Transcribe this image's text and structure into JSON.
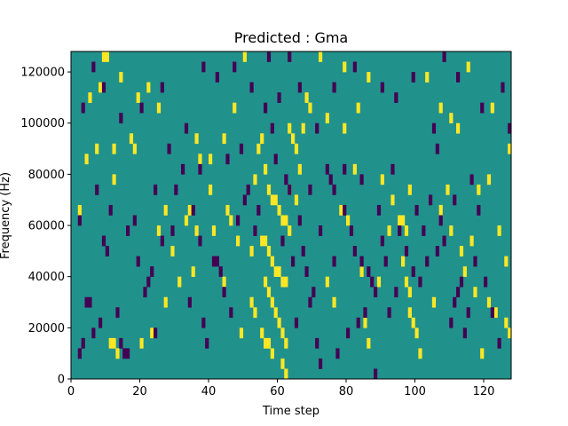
{
  "chart_data": {
    "type": "heatmap",
    "title": "Predicted : Gma",
    "xlabel": "Time step",
    "ylabel": "Frequency (Hz)",
    "xlim": [
      0,
      128
    ],
    "ylim": [
      0,
      128000
    ],
    "xticks": [
      {
        "value": 0,
        "label": "0"
      },
      {
        "value": 20,
        "label": "20"
      },
      {
        "value": 40,
        "label": "40"
      },
      {
        "value": 60,
        "label": "60"
      },
      {
        "value": 80,
        "label": "80"
      },
      {
        "value": 100,
        "label": "100"
      },
      {
        "value": 120,
        "label": "120"
      }
    ],
    "yticks": [
      {
        "value": 0,
        "label": "0"
      },
      {
        "value": 20000,
        "label": "20000"
      },
      {
        "value": 40000,
        "label": "40000"
      },
      {
        "value": 60000,
        "label": "60000"
      },
      {
        "value": 80000,
        "label": "80000"
      },
      {
        "value": 100000,
        "label": "100000"
      },
      {
        "value": 120000,
        "label": "120000"
      }
    ],
    "colors": {
      "background": "#21918c",
      "low": "#440154",
      "high": "#fde725"
    },
    "grid": false,
    "cell_height_hz": 4000,
    "cell_width_steps": 1,
    "cells": {
      "high": [
        [
          9,
          124000
        ],
        [
          10,
          124000
        ],
        [
          14,
          116000
        ],
        [
          19,
          108000
        ],
        [
          25,
          104000
        ],
        [
          37,
          84000
        ],
        [
          44,
          92000
        ],
        [
          54,
          88000
        ],
        [
          56,
          80000
        ],
        [
          57,
          72000
        ],
        [
          58,
          68000
        ],
        [
          59,
          68000
        ],
        [
          60,
          64000
        ],
        [
          61,
          60000
        ],
        [
          62,
          60000
        ],
        [
          63,
          56000
        ],
        [
          55,
          52000
        ],
        [
          56,
          52000
        ],
        [
          57,
          48000
        ],
        [
          58,
          44000
        ],
        [
          59,
          40000
        ],
        [
          60,
          40000
        ],
        [
          61,
          36000
        ],
        [
          62,
          36000
        ],
        [
          56,
          36000
        ],
        [
          57,
          32000
        ],
        [
          58,
          28000
        ],
        [
          59,
          24000
        ],
        [
          60,
          20000
        ],
        [
          61,
          16000
        ],
        [
          62,
          12000
        ],
        [
          55,
          16000
        ],
        [
          56,
          12000
        ],
        [
          57,
          12000
        ],
        [
          58,
          8000
        ],
        [
          61,
          4000
        ],
        [
          62,
          0
        ],
        [
          63,
          96000
        ],
        [
          64,
          92000
        ],
        [
          65,
          88000
        ],
        [
          96,
          60000
        ],
        [
          97,
          56000
        ],
        [
          96,
          44000
        ],
        [
          97,
          36000
        ],
        [
          98,
          32000
        ],
        [
          98,
          24000
        ],
        [
          99,
          20000
        ],
        [
          100,
          16000
        ],
        [
          11,
          12000
        ],
        [
          12,
          12000
        ],
        [
          13,
          8000
        ],
        [
          20,
          12000
        ],
        [
          23,
          16000
        ],
        [
          27,
          28000
        ],
        [
          31,
          36000
        ],
        [
          33,
          60000
        ],
        [
          34,
          64000
        ],
        [
          36,
          56000
        ],
        [
          40,
          72000
        ],
        [
          45,
          64000
        ],
        [
          46,
          60000
        ],
        [
          48,
          52000
        ],
        [
          52,
          48000
        ],
        [
          68,
          108000
        ],
        [
          69,
          104000
        ],
        [
          74,
          100000
        ],
        [
          79,
          96000
        ],
        [
          82,
          80000
        ],
        [
          90,
          76000
        ],
        [
          95,
          60000
        ],
        [
          107,
          64000
        ],
        [
          110,
          56000
        ],
        [
          113,
          48000
        ],
        [
          116,
          52000
        ],
        [
          118,
          72000
        ],
        [
          121,
          76000
        ],
        [
          123,
          24000
        ],
        [
          126,
          20000
        ],
        [
          127,
          16000
        ],
        [
          4,
          84000
        ],
        [
          7,
          88000
        ],
        [
          12,
          76000
        ],
        [
          17,
          92000
        ],
        [
          18,
          88000
        ],
        [
          27,
          64000
        ],
        [
          29,
          48000
        ],
        [
          35,
          40000
        ],
        [
          41,
          56000
        ],
        [
          47,
          104000
        ],
        [
          50,
          124000
        ],
        [
          52,
          28000
        ],
        [
          53,
          24000
        ],
        [
          67,
          96000
        ],
        [
          72,
          124000
        ],
        [
          78,
          64000
        ],
        [
          80,
          60000
        ],
        [
          84,
          40000
        ],
        [
          85,
          20000
        ],
        [
          86,
          12000
        ],
        [
          89,
          36000
        ],
        [
          92,
          56000
        ],
        [
          101,
          8000
        ],
        [
          103,
          116000
        ],
        [
          107,
          104000
        ],
        [
          109,
          72000
        ],
        [
          112,
          96000
        ],
        [
          114,
          40000
        ],
        [
          117,
          32000
        ],
        [
          121,
          28000
        ],
        [
          124,
          56000
        ],
        [
          126,
          44000
        ],
        [
          2,
          64000
        ],
        [
          5,
          108000
        ],
        [
          8,
          112000
        ],
        [
          12,
          88000
        ],
        [
          22,
          112000
        ],
        [
          25,
          56000
        ],
        [
          36,
          92000
        ],
        [
          40,
          84000
        ],
        [
          44,
          36000
        ],
        [
          49,
          16000
        ],
        [
          53,
          76000
        ],
        [
          55,
          92000
        ],
        [
          63,
          72000
        ],
        [
          65,
          68000
        ],
        [
          66,
          80000
        ],
        [
          74,
          36000
        ],
        [
          76,
          28000
        ],
        [
          79,
          120000
        ],
        [
          83,
          104000
        ],
        [
          86,
          116000
        ],
        [
          93,
          68000
        ],
        [
          98,
          72000
        ],
        [
          105,
          28000
        ],
        [
          110,
          100000
        ],
        [
          115,
          120000
        ],
        [
          119,
          8000
        ],
        [
          122,
          104000
        ],
        [
          127,
          88000
        ]
      ],
      "low": [
        [
          4,
          28000
        ],
        [
          5,
          28000
        ],
        [
          14,
          12000
        ],
        [
          15,
          8000
        ],
        [
          16,
          8000
        ],
        [
          22,
          36000
        ],
        [
          23,
          40000
        ],
        [
          28,
          88000
        ],
        [
          37,
          80000
        ],
        [
          41,
          44000
        ],
        [
          42,
          44000
        ],
        [
          43,
          40000
        ],
        [
          48,
          60000
        ],
        [
          51,
          72000
        ],
        [
          56,
          104000
        ],
        [
          58,
          96000
        ],
        [
          60,
          108000
        ],
        [
          62,
          76000
        ],
        [
          63,
          72000
        ],
        [
          66,
          60000
        ],
        [
          67,
          48000
        ],
        [
          68,
          40000
        ],
        [
          70,
          32000
        ],
        [
          74,
          80000
        ],
        [
          75,
          76000
        ],
        [
          76,
          72000
        ],
        [
          79,
          64000
        ],
        [
          81,
          56000
        ],
        [
          82,
          48000
        ],
        [
          84,
          44000
        ],
        [
          86,
          40000
        ],
        [
          87,
          36000
        ],
        [
          88,
          32000
        ],
        [
          92,
          24000
        ],
        [
          95,
          56000
        ],
        [
          97,
          48000
        ],
        [
          99,
          40000
        ],
        [
          101,
          36000
        ],
        [
          103,
          44000
        ],
        [
          106,
          48000
        ],
        [
          108,
          52000
        ],
        [
          110,
          20000
        ],
        [
          113,
          36000
        ],
        [
          115,
          24000
        ],
        [
          2,
          8000
        ],
        [
          3,
          12000
        ],
        [
          6,
          16000
        ],
        [
          8,
          20000
        ],
        [
          9,
          52000
        ],
        [
          11,
          64000
        ],
        [
          13,
          24000
        ],
        [
          16,
          56000
        ],
        [
          19,
          44000
        ],
        [
          21,
          32000
        ],
        [
          24,
          16000
        ],
        [
          26,
          52000
        ],
        [
          30,
          72000
        ],
        [
          32,
          80000
        ],
        [
          34,
          28000
        ],
        [
          38,
          20000
        ],
        [
          39,
          12000
        ],
        [
          44,
          32000
        ],
        [
          46,
          24000
        ],
        [
          50,
          68000
        ],
        [
          53,
          56000
        ],
        [
          64,
          44000
        ],
        [
          65,
          20000
        ],
        [
          69,
          28000
        ],
        [
          71,
          12000
        ],
        [
          72,
          4000
        ],
        [
          77,
          8000
        ],
        [
          80,
          16000
        ],
        [
          83,
          20000
        ],
        [
          85,
          24000
        ],
        [
          88,
          0
        ],
        [
          90,
          52000
        ],
        [
          91,
          44000
        ],
        [
          94,
          32000
        ],
        [
          100,
          64000
        ],
        [
          104,
          68000
        ],
        [
          107,
          60000
        ],
        [
          111,
          28000
        ],
        [
          112,
          32000
        ],
        [
          114,
          16000
        ],
        [
          116,
          76000
        ],
        [
          118,
          64000
        ],
        [
          120,
          36000
        ],
        [
          122,
          24000
        ],
        [
          124,
          12000
        ],
        [
          127,
          96000
        ],
        [
          3,
          104000
        ],
        [
          6,
          120000
        ],
        [
          9,
          112000
        ],
        [
          14,
          100000
        ],
        [
          20,
          104000
        ],
        [
          26,
          112000
        ],
        [
          33,
          96000
        ],
        [
          38,
          120000
        ],
        [
          42,
          116000
        ],
        [
          47,
          120000
        ],
        [
          52,
          112000
        ],
        [
          57,
          124000
        ],
        [
          63,
          124000
        ],
        [
          66,
          112000
        ],
        [
          71,
          96000
        ],
        [
          76,
          112000
        ],
        [
          82,
          120000
        ],
        [
          90,
          112000
        ],
        [
          94,
          108000
        ],
        [
          99,
          116000
        ],
        [
          105,
          96000
        ],
        [
          108,
          124000
        ],
        [
          112,
          116000
        ],
        [
          119,
          104000
        ],
        [
          125,
          112000
        ],
        [
          2,
          60000
        ],
        [
          7,
          72000
        ],
        [
          10,
          48000
        ],
        [
          18,
          60000
        ],
        [
          24,
          72000
        ],
        [
          29,
          56000
        ],
        [
          35,
          64000
        ],
        [
          37,
          52000
        ],
        [
          45,
          84000
        ],
        [
          49,
          88000
        ],
        [
          54,
          64000
        ],
        [
          59,
          84000
        ],
        [
          61,
          52000
        ],
        [
          69,
          72000
        ],
        [
          72,
          56000
        ],
        [
          76,
          44000
        ],
        [
          79,
          80000
        ],
        [
          84,
          76000
        ],
        [
          89,
          64000
        ],
        [
          93,
          80000
        ],
        [
          102,
          56000
        ],
        [
          106,
          88000
        ],
        [
          111,
          68000
        ],
        [
          117,
          44000
        ]
      ]
    }
  }
}
